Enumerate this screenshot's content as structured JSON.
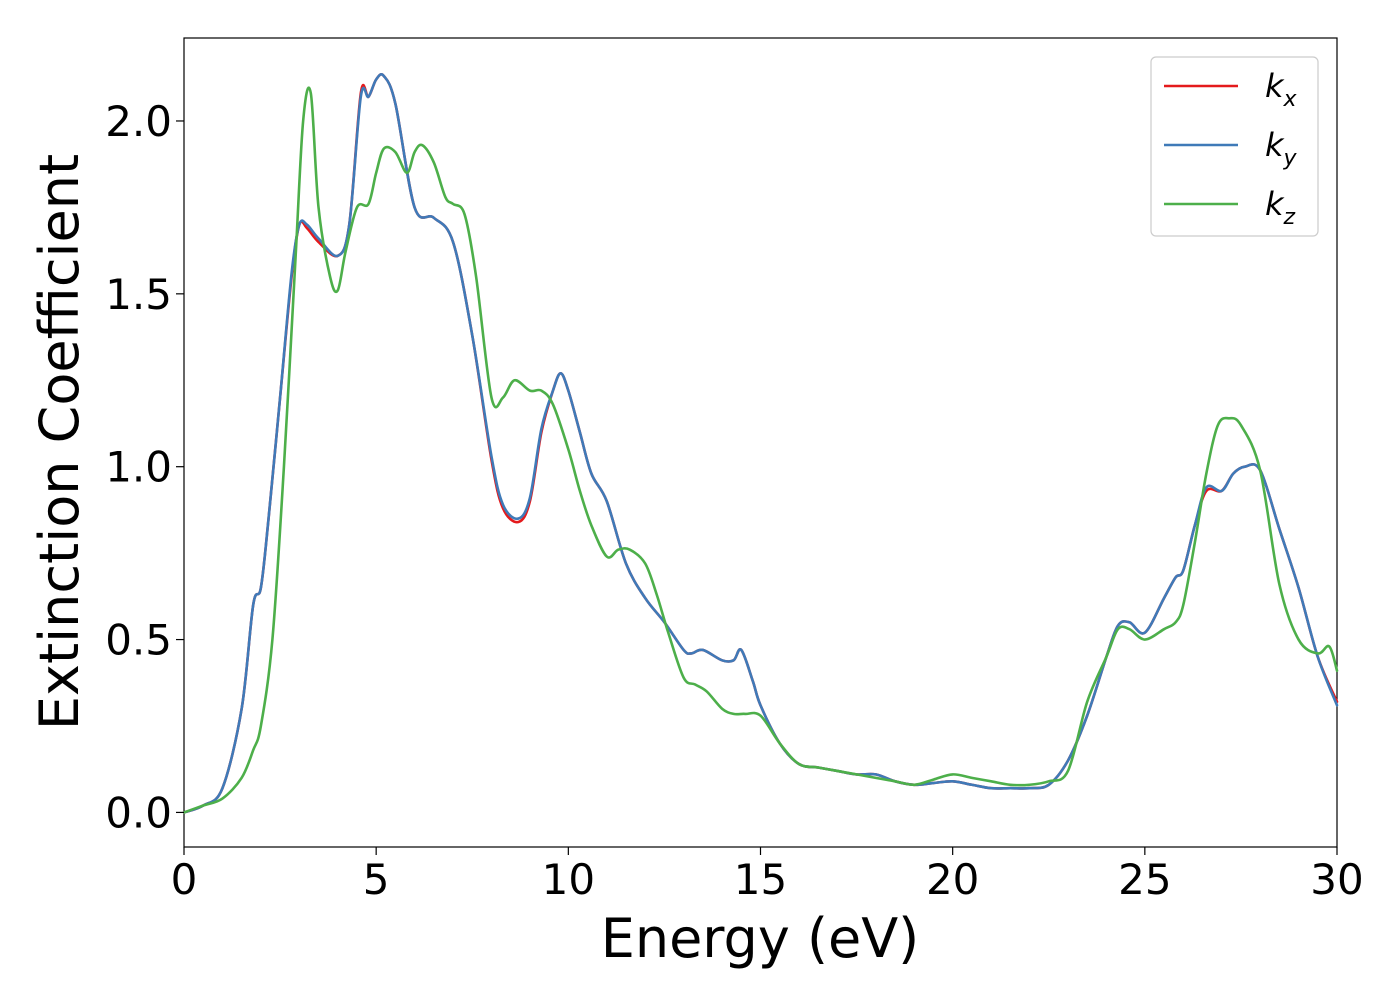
{
  "chart_data": {
    "type": "line",
    "title": "",
    "xlabel": "Energy (eV)",
    "ylabel": "Extinction Coefficient",
    "xlim": [
      0,
      30
    ],
    "ylim": [
      -0.1,
      2.24
    ],
    "xticks": [
      0,
      5,
      10,
      15,
      20,
      25,
      30
    ],
    "xtick_labels": [
      "0",
      "5",
      "10",
      "15",
      "20",
      "25",
      "30"
    ],
    "yticks": [
      0.0,
      0.5,
      1.0,
      1.5,
      2.0
    ],
    "ytick_labels": [
      "0.0",
      "0.5",
      "1.0",
      "1.5",
      "2.0"
    ],
    "grid": false,
    "legend_position": "top-right",
    "series": [
      {
        "name": "k",
        "subscript": "x",
        "color": "#e41a1c",
        "x": [
          0,
          0.5,
          1,
          1.5,
          1.8,
          2,
          2.2,
          2.5,
          2.8,
          3,
          3.2,
          3.5,
          4,
          4.3,
          4.6,
          4.8,
          5,
          5.2,
          5.5,
          6,
          6.5,
          7,
          7.5,
          8,
          8.3,
          8.7,
          9,
          9.3,
          9.6,
          9.8,
          10,
          10.3,
          10.6,
          11,
          11.5,
          12,
          12.5,
          13,
          13.2,
          13.5,
          14,
          14.3,
          14.5,
          14.8,
          15,
          15.5,
          16,
          16.5,
          17,
          17.5,
          18,
          18.5,
          19,
          19.5,
          20,
          20.5,
          21,
          21.5,
          22,
          22.5,
          23,
          23.5,
          24,
          24.3,
          24.6,
          25,
          25.5,
          25.8,
          26,
          26.3,
          26.6,
          27,
          27.3,
          27.6,
          28,
          28.5,
          29,
          29.5,
          30
        ],
        "y": [
          0,
          0.02,
          0.07,
          0.3,
          0.6,
          0.65,
          0.85,
          1.2,
          1.55,
          1.7,
          1.69,
          1.65,
          1.61,
          1.7,
          2.08,
          2.07,
          2.12,
          2.13,
          2.05,
          1.75,
          1.72,
          1.65,
          1.38,
          1.02,
          0.88,
          0.84,
          0.9,
          1.1,
          1.22,
          1.27,
          1.22,
          1.1,
          0.98,
          0.9,
          0.72,
          0.62,
          0.55,
          0.47,
          0.46,
          0.47,
          0.44,
          0.44,
          0.47,
          0.38,
          0.31,
          0.2,
          0.14,
          0.13,
          0.12,
          0.11,
          0.11,
          0.09,
          0.08,
          0.085,
          0.09,
          0.08,
          0.07,
          0.07,
          0.07,
          0.08,
          0.15,
          0.28,
          0.45,
          0.54,
          0.55,
          0.52,
          0.62,
          0.68,
          0.7,
          0.83,
          0.93,
          0.93,
          0.98,
          1.0,
          0.99,
          0.82,
          0.65,
          0.45,
          0.32
        ]
      },
      {
        "name": "k",
        "subscript": "y",
        "color": "#3f7ab8",
        "x": [
          0,
          0.5,
          1,
          1.5,
          1.8,
          2,
          2.2,
          2.5,
          2.8,
          3,
          3.2,
          3.5,
          4,
          4.3,
          4.6,
          4.8,
          5,
          5.2,
          5.5,
          6,
          6.5,
          7,
          7.5,
          8,
          8.3,
          8.7,
          9,
          9.3,
          9.6,
          9.8,
          10,
          10.3,
          10.6,
          11,
          11.5,
          12,
          12.5,
          13,
          13.2,
          13.5,
          14,
          14.3,
          14.5,
          14.8,
          15,
          15.5,
          16,
          16.5,
          17,
          17.5,
          18,
          18.5,
          19,
          19.5,
          20,
          20.5,
          21,
          21.5,
          22,
          22.5,
          23,
          23.5,
          24,
          24.3,
          24.6,
          25,
          25.5,
          25.8,
          26,
          26.3,
          26.6,
          27,
          27.3,
          27.6,
          28,
          28.5,
          29,
          29.5,
          30
        ],
        "y": [
          0,
          0.02,
          0.07,
          0.3,
          0.6,
          0.65,
          0.85,
          1.2,
          1.56,
          1.7,
          1.7,
          1.66,
          1.61,
          1.7,
          2.07,
          2.07,
          2.12,
          2.13,
          2.05,
          1.75,
          1.72,
          1.65,
          1.38,
          1.03,
          0.89,
          0.85,
          0.91,
          1.11,
          1.22,
          1.27,
          1.22,
          1.1,
          0.98,
          0.9,
          0.72,
          0.62,
          0.55,
          0.47,
          0.46,
          0.47,
          0.44,
          0.44,
          0.47,
          0.38,
          0.31,
          0.2,
          0.14,
          0.13,
          0.12,
          0.11,
          0.11,
          0.09,
          0.08,
          0.085,
          0.09,
          0.08,
          0.07,
          0.07,
          0.07,
          0.08,
          0.15,
          0.28,
          0.45,
          0.54,
          0.55,
          0.52,
          0.62,
          0.68,
          0.7,
          0.83,
          0.94,
          0.93,
          0.98,
          1.0,
          0.99,
          0.82,
          0.65,
          0.45,
          0.31
        ]
      },
      {
        "name": "k",
        "subscript": "z",
        "color": "#4daf4a",
        "x": [
          0,
          0.5,
          1,
          1.5,
          1.8,
          2,
          2.3,
          2.6,
          2.9,
          3.1,
          3.3,
          3.5,
          3.8,
          4,
          4.2,
          4.5,
          4.8,
          5,
          5.2,
          5.5,
          5.8,
          6,
          6.2,
          6.5,
          6.8,
          7,
          7.3,
          7.6,
          8,
          8.3,
          8.6,
          9,
          9.3,
          9.6,
          10,
          10.3,
          10.6,
          11,
          11.3,
          11.6,
          12,
          12.3,
          12.6,
          13,
          13.3,
          13.6,
          14,
          14.3,
          14.6,
          15,
          15.5,
          16,
          16.5,
          17,
          17.5,
          18,
          18.5,
          19,
          19.5,
          20,
          20.5,
          21,
          21.5,
          22,
          22.5,
          23,
          23.5,
          24,
          24.3,
          24.6,
          25,
          25.5,
          25.8,
          26,
          26.3,
          26.6,
          26.9,
          27.2,
          27.5,
          28,
          28.5,
          29,
          29.5,
          29.8,
          30
        ],
        "y": [
          0,
          0.02,
          0.04,
          0.1,
          0.18,
          0.25,
          0.5,
          1.0,
          1.6,
          2.0,
          2.08,
          1.75,
          1.55,
          1.51,
          1.62,
          1.75,
          1.76,
          1.85,
          1.92,
          1.91,
          1.85,
          1.91,
          1.93,
          1.88,
          1.78,
          1.76,
          1.73,
          1.55,
          1.2,
          1.2,
          1.25,
          1.22,
          1.22,
          1.18,
          1.05,
          0.93,
          0.83,
          0.74,
          0.76,
          0.76,
          0.72,
          0.63,
          0.52,
          0.39,
          0.37,
          0.35,
          0.3,
          0.285,
          0.285,
          0.28,
          0.2,
          0.14,
          0.13,
          0.12,
          0.11,
          0.1,
          0.09,
          0.08,
          0.095,
          0.11,
          0.1,
          0.09,
          0.08,
          0.08,
          0.09,
          0.12,
          0.32,
          0.45,
          0.53,
          0.53,
          0.5,
          0.53,
          0.55,
          0.6,
          0.78,
          0.98,
          1.12,
          1.14,
          1.12,
          0.99,
          0.66,
          0.5,
          0.46,
          0.48,
          0.41
        ]
      }
    ]
  }
}
